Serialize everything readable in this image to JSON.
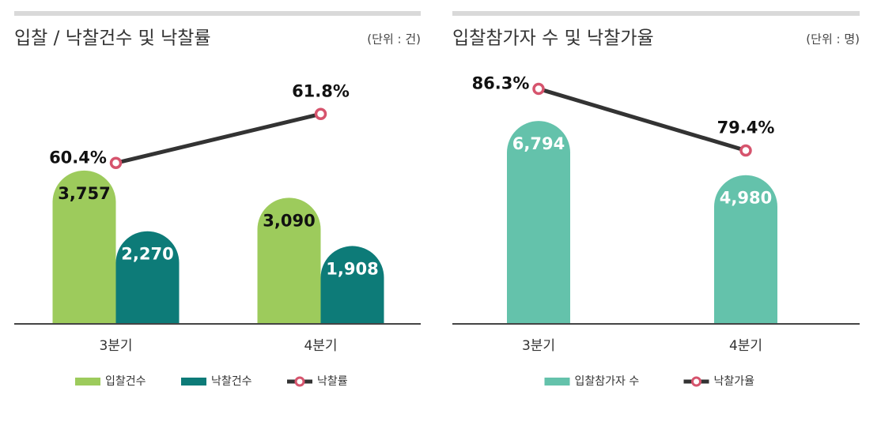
{
  "chart_data": [
    {
      "type": "bar-line",
      "title": "입찰 / 낙찰건수 및 낙찰률",
      "unit": "(단위 : 건)",
      "categories": [
        "3분기",
        "4분기"
      ],
      "ylim": [
        0,
        6000
      ],
      "y2lim": [
        55.8,
        62.8
      ],
      "series": [
        {
          "name": "입찰건수",
          "type": "bar",
          "color": "#9dcb5c",
          "values": [
            3757,
            3090
          ],
          "value_labels": [
            "3,757",
            "3,090"
          ]
        },
        {
          "name": "낙찰건수",
          "type": "bar",
          "color": "#0d7b78",
          "values": [
            2270,
            1908
          ],
          "value_labels": [
            "2,270",
            "1,908"
          ]
        },
        {
          "name": "낙찰률",
          "type": "line",
          "axis": "y2",
          "color": "#333333",
          "marker_color": "#d6546d",
          "values": [
            60.4,
            61.8
          ],
          "value_labels": [
            "60.4%",
            "61.8%"
          ]
        }
      ]
    },
    {
      "type": "bar-line",
      "title": "입찰참가자 수 및 낙찰가율",
      "unit": "(단위 : 명)",
      "categories": [
        "3분기",
        "4분기"
      ],
      "ylim": [
        0,
        8200
      ],
      "y2lim": [
        60,
        87.4
      ],
      "series": [
        {
          "name": "입찰참가자 수",
          "type": "bar",
          "color": "#64c2ab",
          "values": [
            6794,
            4980
          ],
          "value_labels": [
            "6,794",
            "4,980"
          ]
        },
        {
          "name": "낙찰가율",
          "type": "line",
          "axis": "y2",
          "color": "#333333",
          "marker_color": "#d6546d",
          "values": [
            86.3,
            79.4
          ],
          "value_labels": [
            "86.3%",
            "79.4%"
          ]
        }
      ]
    }
  ]
}
